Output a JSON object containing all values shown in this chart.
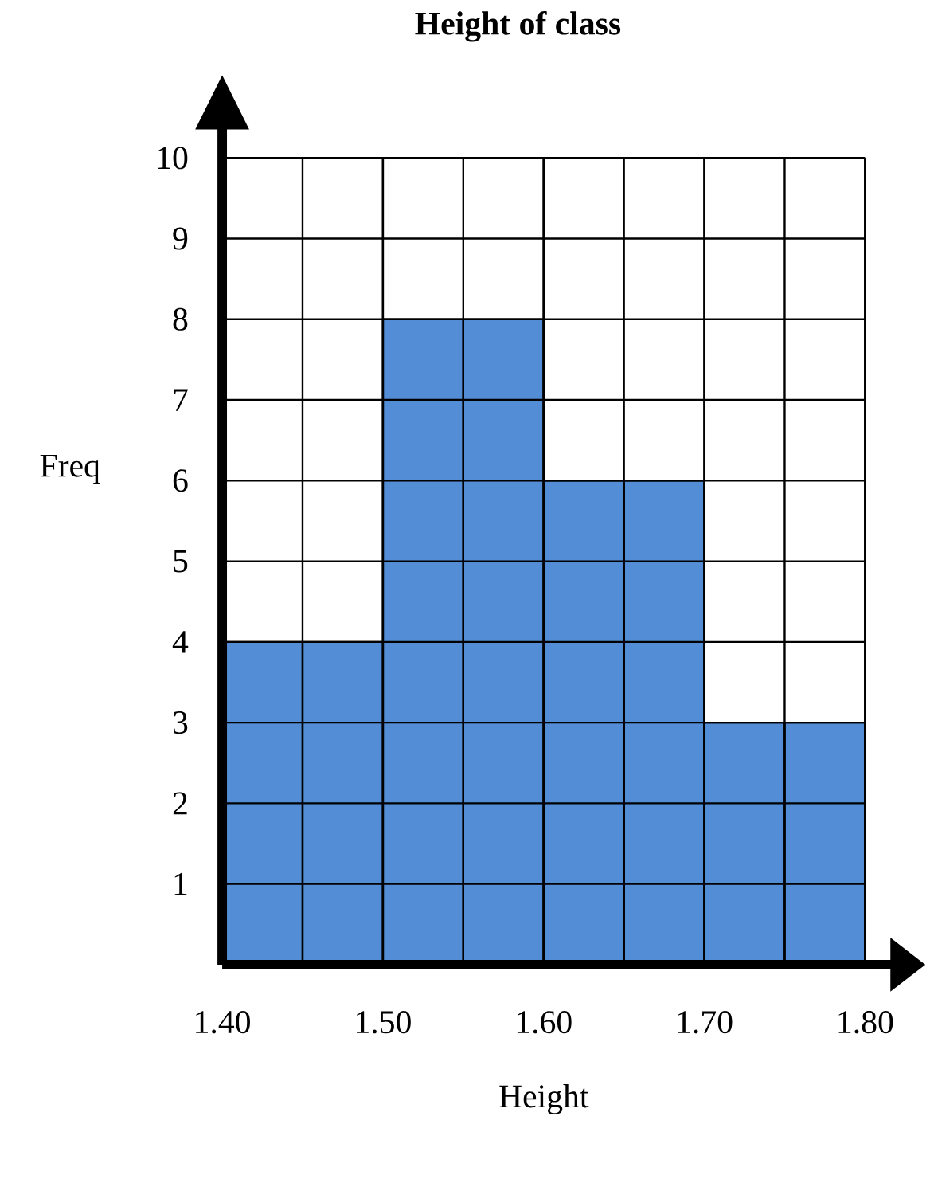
{
  "chart_data": {
    "type": "histogram",
    "title": "Height of class",
    "xlabel": "Height",
    "ylabel": "Freq",
    "bins": [
      1.4,
      1.45,
      1.5,
      1.55,
      1.6,
      1.65,
      1.7,
      1.75,
      1.8
    ],
    "values": [
      4,
      4,
      8,
      8,
      6,
      6,
      3,
      3
    ],
    "color": "#538dd5",
    "xlim": [
      1.4,
      1.8
    ],
    "ylim": [
      0,
      10
    ],
    "xticks": [
      {
        "value": 1.4,
        "label": "1.40"
      },
      {
        "value": 1.5,
        "label": "1.50"
      },
      {
        "value": 1.6,
        "label": "1.60"
      },
      {
        "value": 1.7,
        "label": "1.70"
      },
      {
        "value": 1.8,
        "label": "1.80"
      }
    ],
    "yticks": [
      1,
      2,
      3,
      4,
      5,
      6,
      7,
      8,
      9,
      10
    ],
    "grid": true
  }
}
